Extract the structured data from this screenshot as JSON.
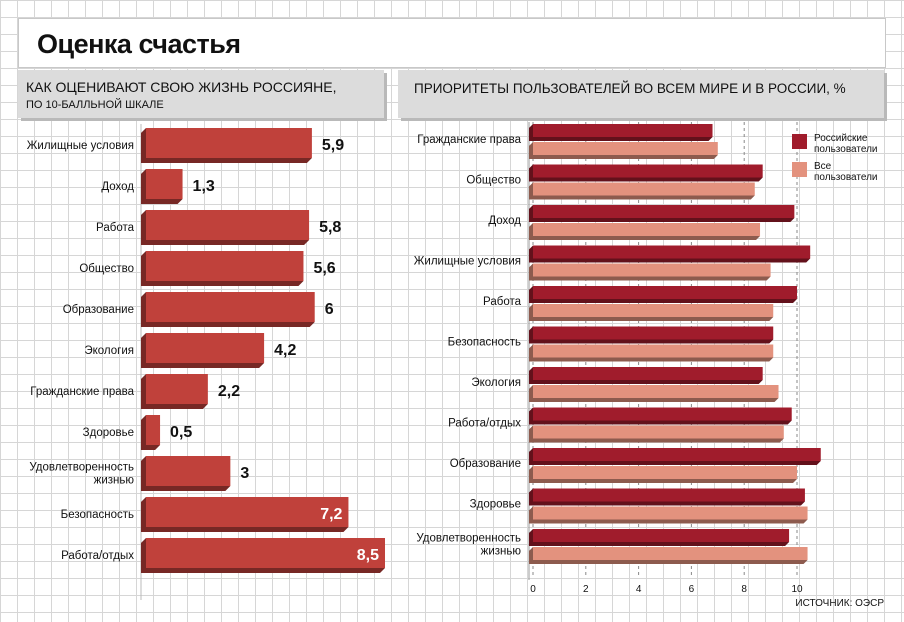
{
  "title": "Оценка счастья",
  "left_header": {
    "line1": "КАК ОЦЕНИВАЮТ СВОЮ ЖИЗНЬ РОССИЯНЕ,",
    "line2": "ПО 10-БАЛЛЬНОЙ ШКАЛЕ"
  },
  "right_header": {
    "line1": "ПРИОРИТЕТЫ  ПОЛЬЗОВАТЕЛЕЙ ВО ВСЕМ МИРЕ И В РОССИИ, %"
  },
  "source": "ИСТОЧНИК: ОЭСР",
  "colors": {
    "left_bar": "#c0413b",
    "russian": "#a01c2c",
    "all": "#e3927e"
  },
  "chart_data": [
    {
      "type": "bar",
      "orientation": "horizontal",
      "title": "КАК ОЦЕНИВАЮТ СВОЮ ЖИЗНЬ РОССИЯНЕ,",
      "subtitle": "ПО 10-БАЛЛЬНОЙ ШКАЛЕ",
      "categories": [
        "Жилищные условия",
        "Доход",
        "Работа",
        "Общество",
        "Образование",
        "Экология",
        "Гражданские права",
        "Здоровье",
        "Удовлетворенность жизнью",
        "Безопасность",
        "Работа/отдых"
      ],
      "values": [
        5.9,
        1.3,
        5.8,
        5.6,
        6,
        4.2,
        2.2,
        0.5,
        3,
        7.2,
        8.5
      ],
      "value_labels": [
        "5,9",
        "1,3",
        "5,8",
        "5,6",
        "6",
        "4,2",
        "2,2",
        "0,5",
        "3",
        "7,2",
        "8,5"
      ],
      "xlim": [
        0,
        8.5
      ]
    },
    {
      "type": "bar",
      "orientation": "horizontal",
      "title": "ПРИОРИТЕТЫ  ПОЛЬЗОВАТЕЛЕЙ ВО ВСЕМ МИРЕ И В РОССИИ, %",
      "categories": [
        "Гражданские права",
        "Общество",
        "Доход",
        "Жилищные условия",
        "Работа",
        "Безопасность",
        "Экология",
        "Работа/отдых",
        "Образование",
        "Здоровье",
        "Удовлетворенность жизнью"
      ],
      "series": [
        {
          "name": "Российские пользователи",
          "values": [
            6.8,
            8.7,
            9.9,
            10.5,
            10.0,
            9.1,
            8.7,
            9.8,
            10.9,
            10.3,
            9.7
          ]
        },
        {
          "name": "Все пользователи",
          "values": [
            7.0,
            8.4,
            8.6,
            9.0,
            9.1,
            9.1,
            9.3,
            9.5,
            10.0,
            10.4,
            10.4
          ]
        }
      ],
      "xticks": [
        "0",
        "2",
        "4",
        "6",
        "8",
        "10"
      ],
      "xlim": [
        0,
        10.5
      ],
      "grid": true,
      "legend": "top-right"
    }
  ]
}
